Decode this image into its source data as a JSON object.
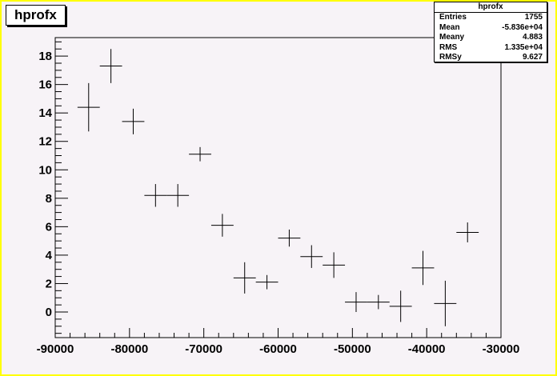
{
  "chart_data": {
    "type": "scatter",
    "title": "hprofx",
    "xlabel": "",
    "ylabel": "",
    "xlim": [
      -90000,
      -30000
    ],
    "ylim": [
      -1.8,
      19.3
    ],
    "x_ticks": [
      -90000,
      -80000,
      -70000,
      -60000,
      -50000,
      -40000,
      -30000
    ],
    "x_tick_labels": [
      "-90000",
      "-80000",
      "-70000",
      "-60000",
      "-50000",
      "-40000",
      "-30000"
    ],
    "y_ticks": [
      0,
      2,
      4,
      6,
      8,
      10,
      12,
      14,
      16,
      18
    ],
    "y_tick_labels": [
      "0",
      "2",
      "4",
      "6",
      "8",
      "10",
      "12",
      "14",
      "16",
      "18"
    ],
    "bin_width": 3000,
    "points": [
      {
        "x": -85500,
        "y": 14.4,
        "yerr": 1.7
      },
      {
        "x": -82500,
        "y": 17.3,
        "yerr": 1.2
      },
      {
        "x": -79500,
        "y": 13.4,
        "yerr": 0.9
      },
      {
        "x": -76500,
        "y": 8.2,
        "yerr": 0.8
      },
      {
        "x": -73500,
        "y": 8.2,
        "yerr": 0.8
      },
      {
        "x": -70500,
        "y": 11.1,
        "yerr": 0.5
      },
      {
        "x": -67500,
        "y": 6.1,
        "yerr": 0.8
      },
      {
        "x": -64500,
        "y": 2.4,
        "yerr": 1.1
      },
      {
        "x": -61500,
        "y": 2.1,
        "yerr": 0.5
      },
      {
        "x": -58500,
        "y": 5.2,
        "yerr": 0.6
      },
      {
        "x": -55500,
        "y": 3.9,
        "yerr": 0.8
      },
      {
        "x": -52500,
        "y": 3.3,
        "yerr": 0.9
      },
      {
        "x": -49500,
        "y": 0.7,
        "yerr": 0.7
      },
      {
        "x": -46500,
        "y": 0.7,
        "yerr": 0.5
      },
      {
        "x": -43500,
        "y": 0.4,
        "yerr": 1.1
      },
      {
        "x": -40500,
        "y": 3.1,
        "yerr": 1.2
      },
      {
        "x": -37500,
        "y": 0.6,
        "yerr": 1.6
      },
      {
        "x": -34500,
        "y": 5.6,
        "yerr": 0.7
      }
    ],
    "grid": false,
    "colors": {
      "frame_border": "#ffff00",
      "canvas": "#f7f3f7",
      "box": "#ffffff",
      "marks": "#000000"
    }
  },
  "stats_box": {
    "title": "hprofx",
    "rows": [
      {
        "label": "Entries",
        "value": "1755"
      },
      {
        "label": "Mean",
        "value": "-5.836e+04"
      },
      {
        "label": "Meany",
        "value": "4.883"
      },
      {
        "label": "RMS",
        "value": "1.335e+04"
      },
      {
        "label": "RMSy",
        "value": "9.627"
      }
    ]
  }
}
